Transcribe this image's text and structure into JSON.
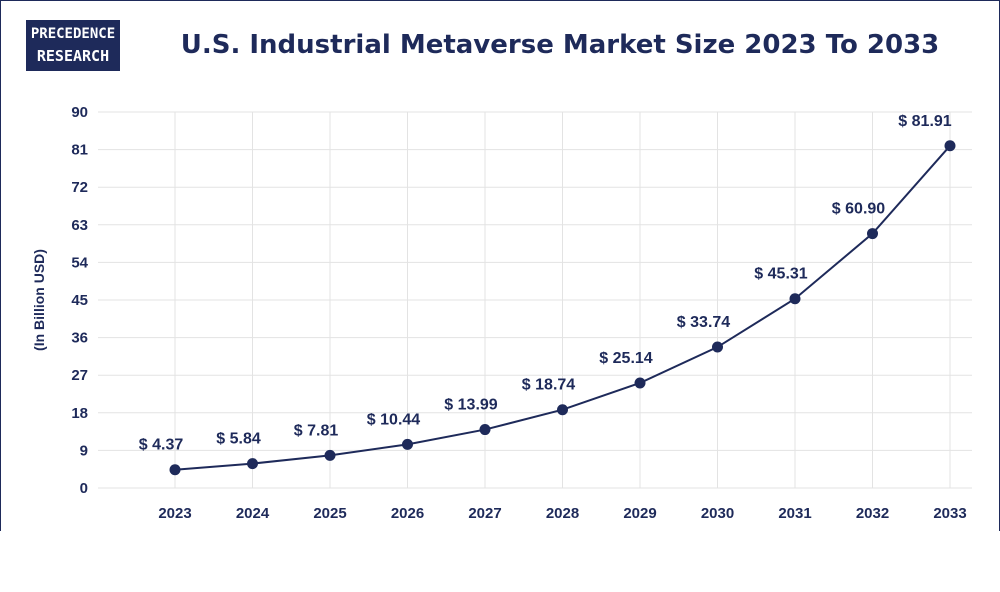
{
  "brand": {
    "line1": "PRECEDENCE",
    "line2": "RESEARCH"
  },
  "chart_data": {
    "type": "line",
    "title": "U.S. Industrial Metaverse Market Size 2023 To 2033",
    "ylabel": "(In Billion USD)",
    "xlabel": "",
    "categories": [
      "2023",
      "2024",
      "2025",
      "2026",
      "2027",
      "2028",
      "2029",
      "2030",
      "2031",
      "2032",
      "2033"
    ],
    "values": [
      4.37,
      5.84,
      7.81,
      10.44,
      13.99,
      18.74,
      25.14,
      33.74,
      45.31,
      60.9,
      81.91
    ],
    "data_labels": [
      "$ 4.37",
      "$ 5.84",
      "$ 7.81",
      "$ 10.44",
      "$ 13.99",
      "$ 18.74",
      "$ 25.14",
      "$ 33.74",
      "$ 45.31",
      "$ 60.90",
      "$ 81.91"
    ],
    "yticks": [
      0,
      9,
      18,
      27,
      36,
      45,
      54,
      63,
      72,
      81,
      90
    ],
    "ylim": [
      0,
      90
    ],
    "grid": true,
    "line_color": "#1e2a5a"
  }
}
